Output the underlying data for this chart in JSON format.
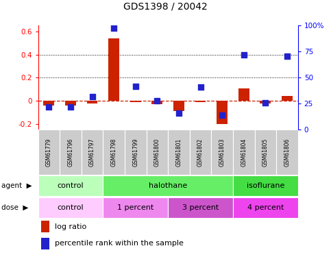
{
  "title": "GDS1398 / 20042",
  "samples": [
    "GSM61779",
    "GSM61796",
    "GSM61797",
    "GSM61798",
    "GSM61799",
    "GSM61800",
    "GSM61801",
    "GSM61802",
    "GSM61803",
    "GSM61804",
    "GSM61805",
    "GSM61806"
  ],
  "log_ratio": [
    -0.04,
    -0.04,
    -0.02,
    0.54,
    -0.01,
    -0.03,
    -0.09,
    -0.01,
    -0.2,
    0.11,
    -0.02,
    0.04
  ],
  "pct_rank": [
    0.22,
    0.22,
    0.32,
    0.98,
    0.42,
    0.28,
    0.16,
    0.41,
    0.14,
    0.72,
    0.26,
    0.71
  ],
  "ylim_left": [
    -0.25,
    0.65
  ],
  "ylim_right": [
    0.0,
    1.0
  ],
  "yticks_left": [
    -0.2,
    0.0,
    0.2,
    0.4,
    0.6
  ],
  "ytick_labels_left": [
    "-0.2",
    "0",
    "0.2",
    "0.4",
    "0.6"
  ],
  "yticks_right": [
    0.0,
    0.25,
    0.5,
    0.75,
    1.0
  ],
  "ytick_labels_right": [
    "0",
    "25",
    "50",
    "75",
    "100%"
  ],
  "agent_groups": [
    {
      "label": "control",
      "start": 0,
      "end": 3,
      "color": "#bbffbb"
    },
    {
      "label": "halothane",
      "start": 3,
      "end": 9,
      "color": "#66ee66"
    },
    {
      "label": "isoflurane",
      "start": 9,
      "end": 12,
      "color": "#44dd44"
    }
  ],
  "dose_groups": [
    {
      "label": "control",
      "start": 0,
      "end": 3,
      "color": "#ffccff"
    },
    {
      "label": "1 percent",
      "start": 3,
      "end": 6,
      "color": "#ee88ee"
    },
    {
      "label": "3 percent",
      "start": 6,
      "end": 9,
      "color": "#cc55cc"
    },
    {
      "label": "4 percent",
      "start": 9,
      "end": 12,
      "color": "#ee44ee"
    }
  ],
  "bar_color": "#cc2200",
  "dot_color": "#2222cc",
  "hline_color": "#cc2200",
  "bg_color": "#ffffff",
  "sample_row_color": "#cccccc",
  "bar_width": 0.5,
  "dot_size": 28,
  "legend_log_ratio": "log ratio",
  "legend_pct": "percentile rank within the sample"
}
